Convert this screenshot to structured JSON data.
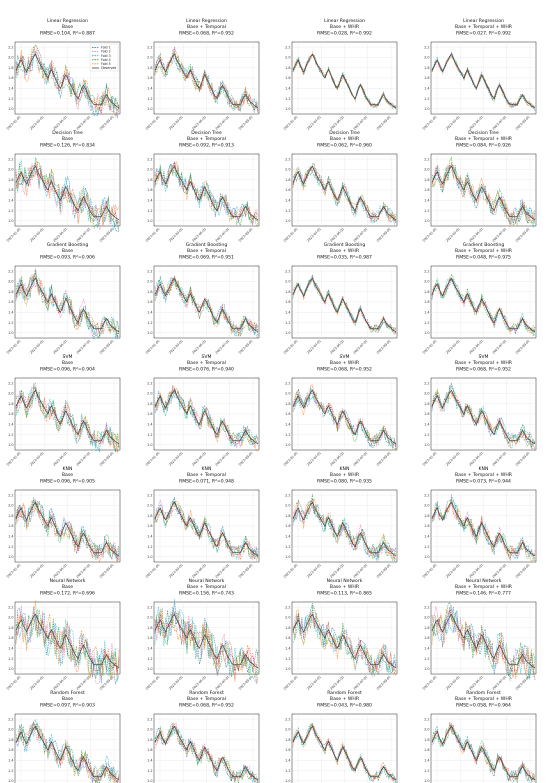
{
  "colors": {
    "fold1": "#1f77b4",
    "fold2": "#e377c2",
    "fold3": "#17becf",
    "fold4": "#2ca02c",
    "fold5": "#ff7f0e",
    "observed": "#444444",
    "prediction": "#d62728",
    "grid": "#dddddd"
  },
  "legend": {
    "placement": "top-right",
    "entries": [
      "Fold 1",
      "Fold 2",
      "Fold 3",
      "Fold 4",
      "Fold 5",
      "Observed"
    ]
  },
  "chart_data": {
    "type": "line",
    "layout": "grid 7 rows x 4 columns",
    "ylim": [
      0.9,
      2.3
    ],
    "y_ticks": [
      "1.0",
      "1.2",
      "1.4",
      "1.6",
      "1.8",
      "2.0",
      "2.2"
    ],
    "x_ticks": [
      "2023-01-01",
      "2023-03-01",
      "2023-05-01",
      "2023-07-01",
      "2023-09-01"
    ],
    "grid": true,
    "observed_series": [
      1.75,
      1.82,
      1.9,
      1.95,
      1.85,
      1.78,
      1.72,
      1.8,
      1.88,
      1.95,
      2.02,
      2.06,
      1.98,
      1.9,
      1.84,
      1.78,
      1.72,
      1.65,
      1.6,
      1.7,
      1.76,
      1.68,
      1.6,
      1.52,
      1.45,
      1.4,
      1.48,
      1.58,
      1.66,
      1.6,
      1.52,
      1.45,
      1.38,
      1.3,
      1.24,
      1.2,
      1.3,
      1.4,
      1.46,
      1.4,
      1.32,
      1.24,
      1.18,
      1.12,
      1.08,
      1.08,
      1.08,
      1.08,
      1.08,
      1.15,
      1.22,
      1.28,
      1.22,
      1.16,
      1.12,
      1.1,
      1.06,
      1.04,
      1.02
    ],
    "panels": [
      {
        "model": "Linear Regression",
        "features": "Base",
        "rmse": 0.104,
        "r2": 0.887,
        "title": [
          "Linear Regression",
          "Base",
          "RMSE=0.104, R²=0.887"
        ]
      },
      {
        "model": "Linear Regression",
        "features": "Base + Temporal",
        "rmse": 0.068,
        "r2": 0.952,
        "title": [
          "Linear Regression",
          "Base + Temporal",
          "RMSE=0.068, R²=0.952"
        ]
      },
      {
        "model": "Linear Regression",
        "features": "Base + WHR",
        "rmse": 0.028,
        "r2": 0.992,
        "title": [
          "Linear Regression",
          "Base + WHR",
          "RMSE=0.028, R²=0.992"
        ]
      },
      {
        "model": "Linear Regression",
        "features": "Base + Temporal + WHR",
        "rmse": 0.027,
        "r2": 0.992,
        "title": [
          "Linear Regression",
          "Base + Temporal + WHR",
          "RMSE=0.027, R²=0.992"
        ]
      },
      {
        "model": "Decision Tree",
        "features": "Base",
        "rmse": 0.126,
        "r2": 0.834,
        "title": [
          "Decision Tree",
          "Base",
          "RMSE=0.126, R²=0.834"
        ]
      },
      {
        "model": "Decision Tree",
        "features": "Base + Temporal",
        "rmse": 0.092,
        "r2": 0.913,
        "title": [
          "Decision Tree",
          "Base + Temporal",
          "RMSE=0.092, R²=0.913"
        ]
      },
      {
        "model": "Decision Tree",
        "features": "Base + WHR",
        "rmse": 0.062,
        "r2": 0.96,
        "title": [
          "Decision Tree",
          "Base + WHR",
          "RMSE=0.062, R²=0.960"
        ]
      },
      {
        "model": "Decision Tree",
        "features": "Base + Temporal + WHR",
        "rmse": 0.084,
        "r2": 0.926,
        "title": [
          "Decision Tree",
          "Base + Temporal + WHR",
          "RMSE=0.084, R²=0.926"
        ]
      },
      {
        "model": "Gradient Boosting",
        "features": "Base",
        "rmse": 0.093,
        "r2": 0.906,
        "title": [
          "Gradient Boosting",
          "Base",
          "RMSE=0.093, R²=0.906"
        ]
      },
      {
        "model": "Gradient Boosting",
        "features": "Base + Temporal",
        "rmse": 0.069,
        "r2": 0.951,
        "title": [
          "Gradient Boosting",
          "Base + Temporal",
          "RMSE=0.069, R²=0.951"
        ]
      },
      {
        "model": "Gradient Boosting",
        "features": "Base + WHR",
        "rmse": 0.035,
        "r2": 0.987,
        "title": [
          "Gradient Boosting",
          "Base + WHR",
          "RMSE=0.035, R²=0.987"
        ]
      },
      {
        "model": "Gradient Boosting",
        "features": "Base + Temporal + WHR",
        "rmse": 0.048,
        "r2": 0.975,
        "title": [
          "Gradient Boosting",
          "Base + Temporal + WHR",
          "RMSE=0.048, R²=0.975"
        ]
      },
      {
        "model": "SVM",
        "features": "Base",
        "rmse": 0.096,
        "r2": 0.904,
        "title": [
          "SVM",
          "Base",
          "RMSE=0.096, R²=0.904"
        ]
      },
      {
        "model": "SVM",
        "features": "Base + Temporal",
        "rmse": 0.076,
        "r2": 0.94,
        "title": [
          "SVM",
          "Base + Temporal",
          "RMSE=0.076, R²=0.940"
        ]
      },
      {
        "model": "SVM",
        "features": "Base + WHR",
        "rmse": 0.068,
        "r2": 0.952,
        "title": [
          "SVM",
          "Base + WHR",
          "RMSE=0.068, R²=0.952"
        ]
      },
      {
        "model": "SVM",
        "features": "Base + Temporal + WHR",
        "rmse": 0.068,
        "r2": 0.952,
        "title": [
          "SVM",
          "Base + Temporal + WHR",
          "RMSE=0.068, R²=0.952"
        ]
      },
      {
        "model": "KNN",
        "features": "Base",
        "rmse": 0.096,
        "r2": 0.905,
        "title": [
          "KNN",
          "Base",
          "RMSE=0.096, R²=0.905"
        ]
      },
      {
        "model": "KNN",
        "features": "Base + Temporal",
        "rmse": 0.071,
        "r2": 0.948,
        "title": [
          "KNN",
          "Base + Temporal",
          "RMSE=0.071, R²=0.948"
        ]
      },
      {
        "model": "KNN",
        "features": "Base + WHR",
        "rmse": 0.08,
        "r2": 0.935,
        "title": [
          "KNN",
          "Base + WHR",
          "RMSE=0.080, R²=0.935"
        ]
      },
      {
        "model": "KNN",
        "features": "Base + Temporal + WHR",
        "rmse": 0.073,
        "r2": 0.944,
        "title": [
          "KNN",
          "Base + Temporal + WHR",
          "RMSE=0.073, R²=0.944"
        ]
      },
      {
        "model": "Neural Network",
        "features": "Base",
        "rmse": 0.172,
        "r2": 0.696,
        "title": [
          "Neural Network",
          "Base",
          "RMSE=0.172, R²=0.696"
        ]
      },
      {
        "model": "Neural Network",
        "features": "Base + Temporal",
        "rmse": 0.156,
        "r2": 0.743,
        "title": [
          "Neural Network",
          "Base + Temporal",
          "RMSE=0.156, R²=0.743"
        ]
      },
      {
        "model": "Neural Network",
        "features": "Base + WHR",
        "rmse": 0.113,
        "r2": 0.865,
        "title": [
          "Neural Network",
          "Base + WHR",
          "RMSE=0.113, R²=0.865"
        ]
      },
      {
        "model": "Neural Network",
        "features": "Base + Temporal + WHR",
        "rmse": 0.146,
        "r2": 0.777,
        "title": [
          "Neural Network",
          "Base + Temporal + WHR",
          "RMSE=0.146, R²=0.777"
        ]
      },
      {
        "model": "Random Forest",
        "features": "Base",
        "rmse": 0.097,
        "r2": 0.903,
        "title": [
          "Random Forest",
          "Base",
          "RMSE=0.097, R²=0.903"
        ]
      },
      {
        "model": "Random Forest",
        "features": "Base + Temporal",
        "rmse": 0.068,
        "r2": 0.952,
        "title": [
          "Random Forest",
          "Base + Temporal",
          "RMSE=0.068, R²=0.952"
        ]
      },
      {
        "model": "Random Forest",
        "features": "Base + WHR",
        "rmse": 0.043,
        "r2": 0.98,
        "title": [
          "Random Forest",
          "Base + WHR",
          "RMSE=0.043, R²=0.980"
        ]
      },
      {
        "model": "Random Forest",
        "features": "Base + Temporal + WHR",
        "rmse": 0.058,
        "r2": 0.964,
        "title": [
          "Random Forest",
          "Base + Temporal + WHR",
          "RMSE=0.058, R²=0.964"
        ]
      }
    ]
  }
}
